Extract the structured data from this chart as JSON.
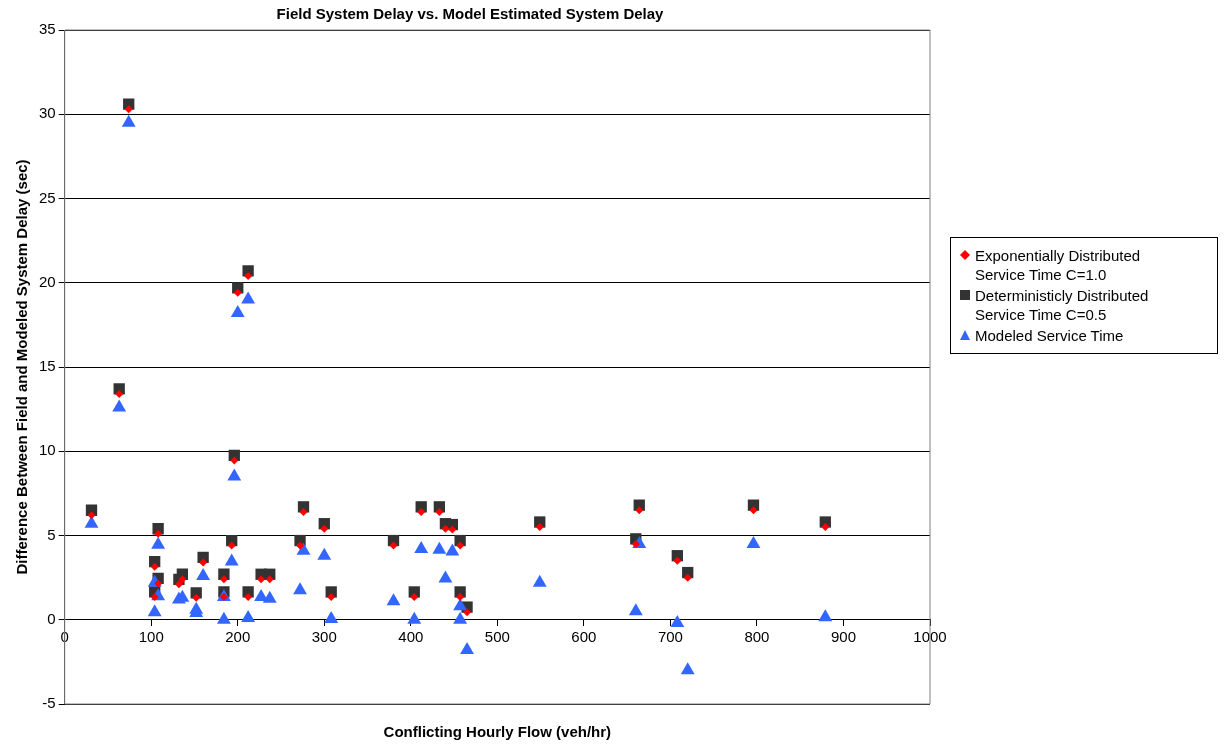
{
  "chart_data": {
    "type": "scatter",
    "title": "Field System Delay vs. Model Estimated System Delay",
    "xlabel": "Conflicting Hourly Flow (veh/hr)",
    "ylabel": "Difference Between Field and Modeled System Delay (sec)",
    "xlim": [
      0,
      1000
    ],
    "xticks": [
      0,
      100,
      200,
      300,
      400,
      500,
      600,
      700,
      800,
      900,
      1000
    ],
    "ylim": [
      -5,
      35
    ],
    "yticks": [
      -5,
      0,
      5,
      10,
      15,
      20,
      25,
      30,
      35
    ],
    "grid": "y",
    "legend": "right",
    "series": [
      {
        "name": "Exponentially Distributed Service Time C=1.0",
        "color": "#ff0000",
        "marker": "diamond",
        "x": [
          31,
          63,
          74,
          104,
          104,
          108,
          108,
          132,
          136,
          152,
          160,
          184,
          184,
          193,
          196,
          200,
          212,
          212,
          227,
          237,
          272,
          276,
          300,
          308,
          380,
          404,
          412,
          433,
          440,
          448,
          457,
          457,
          465,
          549,
          660,
          664,
          708,
          720,
          796,
          879
        ],
        "values": [
          6.2,
          13.4,
          30.3,
          3.15,
          1.35,
          5.1,
          2.15,
          2.1,
          2.4,
          1.3,
          3.4,
          2.4,
          1.35,
          4.4,
          9.45,
          19.4,
          20.4,
          1.35,
          2.4,
          2.4,
          4.4,
          6.4,
          5.4,
          1.35,
          4.4,
          1.35,
          6.4,
          6.4,
          5.4,
          5.35,
          4.4,
          1.35,
          0.45,
          5.5,
          4.5,
          6.5,
          3.5,
          2.5,
          6.5,
          5.5
        ]
      },
      {
        "name": "Deterministicly Distributed Service Time C=0.5",
        "color": "#333333",
        "marker": "square",
        "x": [
          31,
          63,
          74,
          104,
          104,
          108,
          108,
          132,
          136,
          152,
          160,
          184,
          184,
          193,
          196,
          200,
          212,
          212,
          227,
          237,
          272,
          276,
          300,
          308,
          380,
          404,
          412,
          433,
          440,
          448,
          457,
          457,
          465,
          549,
          660,
          664,
          708,
          720,
          796,
          879
        ],
        "values": [
          6.5,
          13.7,
          30.6,
          3.45,
          1.65,
          5.4,
          2.45,
          2.4,
          2.7,
          1.6,
          3.7,
          2.7,
          1.65,
          4.7,
          9.75,
          19.7,
          20.7,
          1.65,
          2.7,
          2.7,
          4.7,
          6.7,
          5.7,
          1.65,
          4.7,
          1.65,
          6.7,
          6.7,
          5.7,
          5.65,
          4.7,
          1.65,
          0.75,
          5.8,
          4.8,
          6.8,
          3.8,
          2.8,
          6.8,
          5.8
        ]
      },
      {
        "name": "Modeled Service Time",
        "color": "#3366ff",
        "marker": "triangle",
        "x": [
          31,
          63,
          74,
          104,
          104,
          108,
          108,
          132,
          136,
          152,
          152,
          160,
          184,
          184,
          193,
          196,
          200,
          212,
          212,
          227,
          237,
          272,
          276,
          300,
          308,
          380,
          404,
          412,
          433,
          440,
          448,
          457,
          457,
          465,
          549,
          660,
          664,
          708,
          720,
          796,
          879
        ],
        "values": [
          5.7,
          12.6,
          29.5,
          2.2,
          0.45,
          4.45,
          1.4,
          1.2,
          1.3,
          0.6,
          0.4,
          2.6,
          1.35,
          0.0,
          3.45,
          8.5,
          18.2,
          19.0,
          0.1,
          1.35,
          1.25,
          1.75,
          4.1,
          3.8,
          0.05,
          1.1,
          0.0,
          4.2,
          4.15,
          2.45,
          4.05,
          0.8,
          0.0,
          -1.8,
          2.2,
          0.5,
          4.5,
          -0.2,
          -3.0,
          4.5,
          0.15
        ]
      }
    ]
  }
}
